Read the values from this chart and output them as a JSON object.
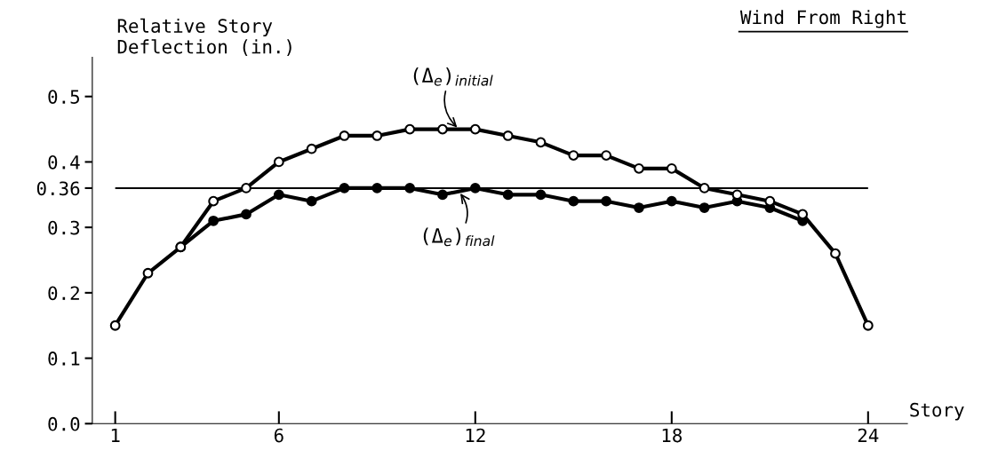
{
  "chart_data": {
    "type": "line",
    "title": "Wind From Right",
    "ylabel": "Relative Story\nDeflection (in.)",
    "xlabel": "Story",
    "x": [
      1,
      2,
      3,
      4,
      5,
      6,
      7,
      8,
      9,
      10,
      11,
      12,
      13,
      14,
      15,
      16,
      17,
      18,
      19,
      20,
      21,
      22,
      23,
      24
    ],
    "series": [
      {
        "name": "(Δ$_{e}$)$_{initial}$",
        "color": "#000000",
        "values": [
          0.15,
          0.23,
          0.27,
          0.34,
          0.36,
          0.4,
          0.42,
          0.44,
          0.44,
          0.45,
          0.45,
          0.45,
          0.44,
          0.43,
          0.41,
          0.41,
          0.39,
          0.39,
          0.36,
          0.35,
          0.34,
          0.32,
          0.26,
          0.15
        ]
      },
      {
        "name": "(Δ$_{e}$)$_{final}$",
        "color": "#000000",
        "values": [
          null,
          null,
          0.27,
          0.31,
          0.32,
          0.35,
          0.34,
          0.36,
          0.36,
          0.36,
          0.35,
          0.36,
          0.35,
          0.35,
          0.34,
          0.34,
          0.33,
          0.34,
          0.33,
          0.34,
          0.33,
          0.31,
          null,
          null
        ]
      }
    ],
    "ref_lines": [
      {
        "axis": "y",
        "value": 0.36
      }
    ],
    "xlim": [
      0.3,
      25.2
    ],
    "ylim": [
      0,
      0.56
    ],
    "xticks": [
      1,
      6,
      12,
      18,
      24
    ],
    "yticks": [
      {
        "value": 0.0,
        "label": "0.0"
      },
      {
        "value": 0.1,
        "label": "0.1"
      },
      {
        "value": 0.2,
        "label": "0.2"
      },
      {
        "value": 0.3,
        "label": "0.3"
      },
      {
        "value": 0.36,
        "label": "0.36"
      },
      {
        "value": 0.4,
        "label": "0.4"
      },
      {
        "value": 0.5,
        "label": "0.5"
      }
    ],
    "grid": false,
    "marker": "circle",
    "line_style": "solid"
  }
}
